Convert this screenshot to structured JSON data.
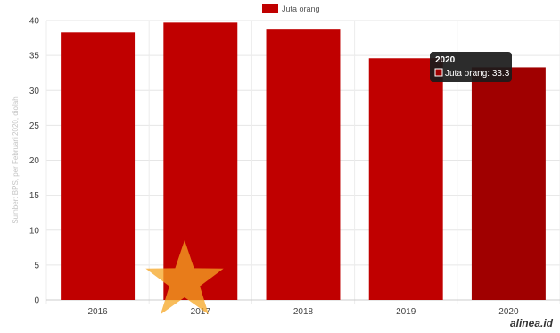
{
  "chart_data": {
    "type": "bar",
    "categories": [
      "2016",
      "2017",
      "2018",
      "2019",
      "2020"
    ],
    "series": [
      {
        "name": "Juta orang",
        "values": [
          38.3,
          39.7,
          38.7,
          34.6,
          33.3
        ]
      }
    ],
    "ylabel": "Sumber: BPS, per Februari 2020, diolah",
    "ylim": [
      0,
      40
    ],
    "yticks": [
      0,
      5,
      10,
      15,
      20,
      25,
      30,
      35,
      40
    ],
    "grid": true,
    "legend": "top-center",
    "highlighted_category": "2020",
    "tooltip": {
      "title": "2020",
      "label": "Juta orang: 33.3"
    }
  },
  "colors": {
    "bar": "#c00000",
    "bar_highlight": "#a00000",
    "tooltip_bg": "#1a1a1a",
    "star": "#f5a623"
  },
  "icons": {
    "logo": "star-logo-icon"
  },
  "watermark": "alinea.id"
}
